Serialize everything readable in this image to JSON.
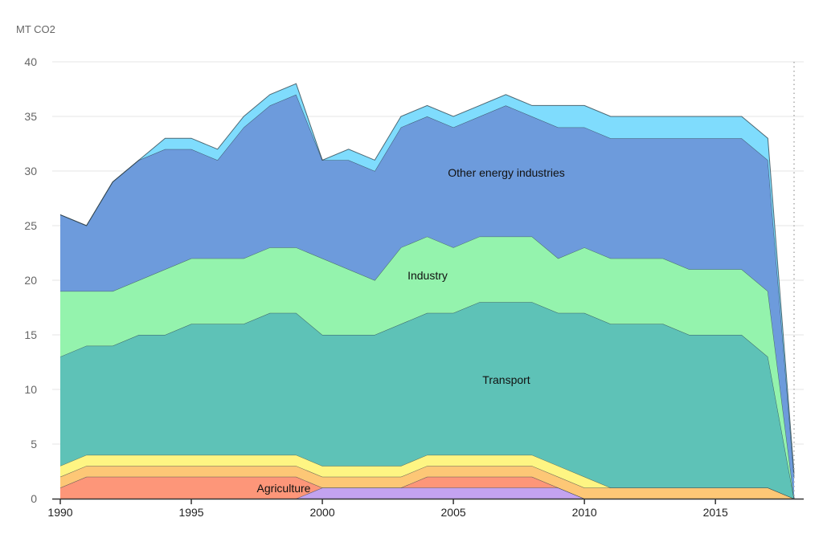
{
  "chart_data": {
    "type": "area",
    "stacked": true,
    "title": "",
    "xlabel": "",
    "ylabel": "MT CO2",
    "ylim": [
      0,
      40
    ],
    "xlim": [
      1990,
      2018
    ],
    "yticks": [
      0,
      5,
      10,
      15,
      20,
      25,
      30,
      35,
      40
    ],
    "xticks": [
      1990,
      1995,
      2000,
      2005,
      2010,
      2015
    ],
    "grid": true,
    "x": [
      1990,
      1991,
      1992,
      1993,
      1994,
      1995,
      1996,
      1997,
      1998,
      1999,
      2000,
      2001,
      2002,
      2003,
      2004,
      2005,
      2006,
      2007,
      2008,
      2009,
      2010,
      2011,
      2012,
      2013,
      2014,
      2015,
      2016,
      2017,
      2018
    ],
    "series": [
      {
        "name": "",
        "color": "#c3a3f0",
        "values": [
          0,
          0,
          0,
          0,
          0,
          0,
          0,
          0,
          0,
          0,
          1,
          1,
          1,
          1,
          1,
          1,
          1,
          1,
          1,
          1,
          0,
          0,
          0,
          0,
          0,
          0,
          0,
          0,
          0
        ]
      },
      {
        "name": "Agriculture",
        "color": "#fd9679",
        "values": [
          1,
          2,
          2,
          2,
          2,
          2,
          2,
          2,
          2,
          2,
          0,
          0,
          0,
          0,
          1,
          1,
          1,
          1,
          1,
          0,
          0,
          0,
          0,
          0,
          0,
          0,
          0,
          0,
          0
        ]
      },
      {
        "name": "",
        "color": "#fdc776",
        "values": [
          1,
          1,
          1,
          1,
          1,
          1,
          1,
          1,
          1,
          1,
          1,
          1,
          1,
          1,
          1,
          1,
          1,
          1,
          1,
          1,
          1,
          1,
          1,
          1,
          1,
          1,
          1,
          1,
          0
        ]
      },
      {
        "name": "",
        "color": "#fef583",
        "values": [
          1,
          1,
          1,
          1,
          1,
          1,
          1,
          1,
          1,
          1,
          1,
          1,
          1,
          1,
          1,
          1,
          1,
          1,
          1,
          1,
          1,
          0,
          0,
          0,
          0,
          0,
          0,
          0,
          0
        ]
      },
      {
        "name": "Transport",
        "color": "#5ec2b7",
        "values": [
          10,
          10,
          10,
          11,
          11,
          12,
          12,
          12,
          13,
          13,
          12,
          12,
          12,
          13,
          13,
          13,
          14,
          14,
          14,
          14,
          15,
          15,
          15,
          15,
          14,
          14,
          14,
          12,
          0
        ]
      },
      {
        "name": "Industry",
        "color": "#94f3ad",
        "values": [
          6,
          5,
          5,
          5,
          6,
          6,
          6,
          6,
          6,
          6,
          7,
          6,
          5,
          7,
          7,
          6,
          6,
          6,
          6,
          5,
          6,
          6,
          6,
          6,
          6,
          6,
          6,
          6,
          0
        ]
      },
      {
        "name": "Other energy industries",
        "color": "#6d9bdc",
        "values": [
          7,
          6,
          10,
          11,
          11,
          10,
          9,
          12,
          13,
          14,
          9,
          10,
          10,
          11,
          11,
          11,
          11,
          12,
          11,
          12,
          11,
          11,
          11,
          11,
          12,
          12,
          12,
          12,
          2
        ]
      },
      {
        "name": "",
        "color": "#7fdcfd",
        "values": [
          0,
          0,
          0,
          0,
          1,
          1,
          1,
          1,
          1,
          1,
          0,
          1,
          1,
          1,
          1,
          1,
          1,
          1,
          1,
          2,
          2,
          2,
          2,
          2,
          2,
          2,
          2,
          2,
          0.3
        ]
      }
    ]
  }
}
